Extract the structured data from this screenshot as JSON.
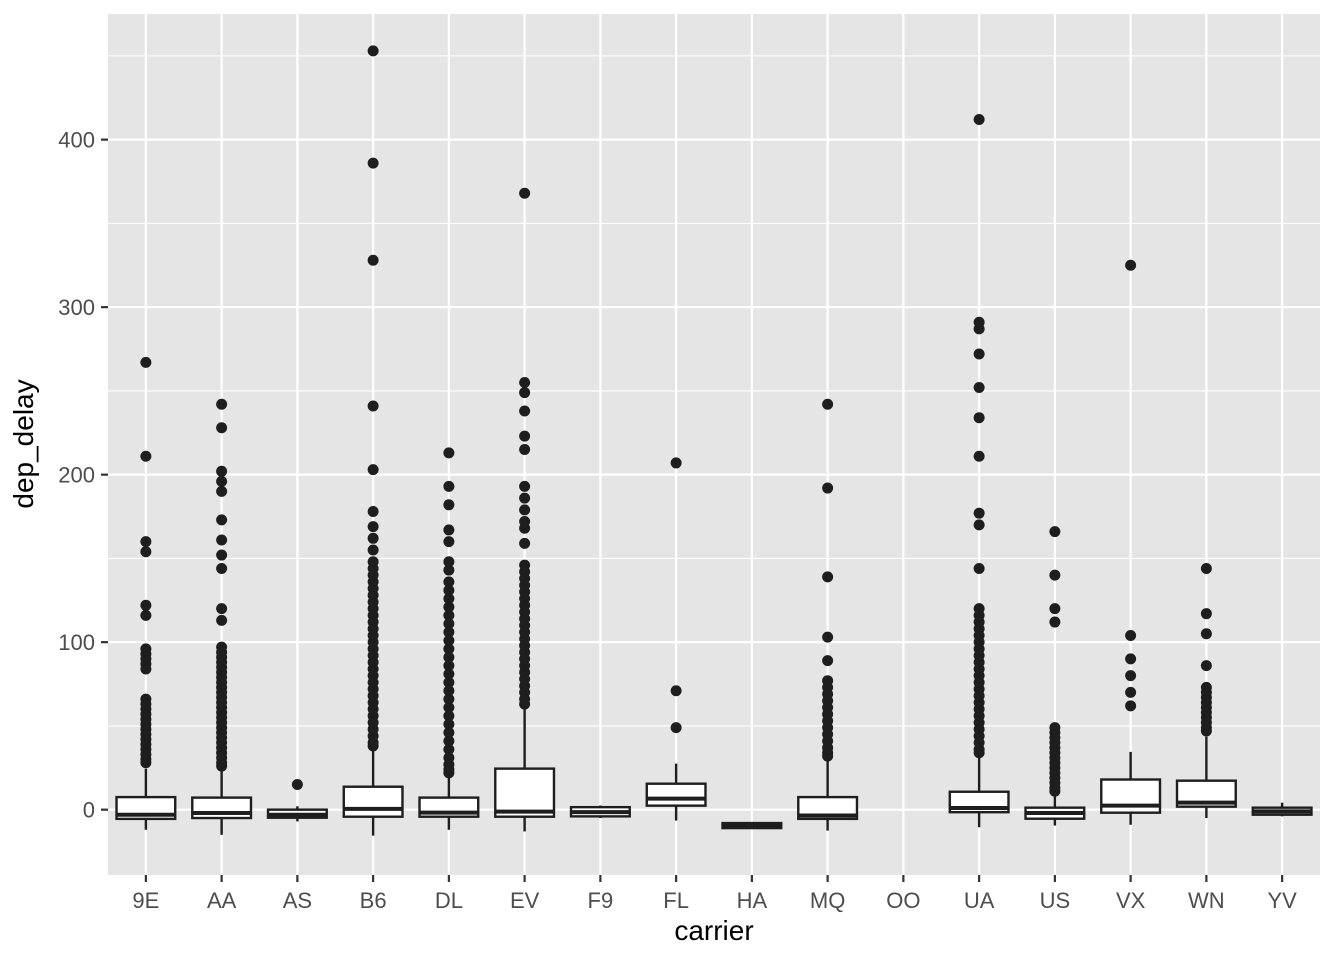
{
  "chart_data": {
    "type": "boxplot",
    "title": "",
    "xlabel": "carrier",
    "ylabel": "dep_delay",
    "categories": [
      "9E",
      "AA",
      "AS",
      "B6",
      "DL",
      "EV",
      "F9",
      "FL",
      "HA",
      "MQ",
      "OO",
      "UA",
      "US",
      "VX",
      "WN",
      "YV"
    ],
    "y_axis": {
      "major_ticks": [
        0,
        100,
        200,
        300,
        400
      ],
      "minor_gridlines": [
        50,
        150,
        250,
        350,
        450
      ],
      "ylim": [
        -39,
        475
      ]
    },
    "legend": "none",
    "grid": "on",
    "series": [
      {
        "carrier": "9E",
        "box": {
          "lo": -12,
          "q1": -5.5,
          "med": -3,
          "q3": 7.5,
          "hi": 24.5
        },
        "outliers": [
          267,
          211,
          160,
          154,
          122,
          116,
          96,
          93,
          90,
          87,
          84,
          66,
          63,
          60,
          57,
          54,
          51,
          48,
          45,
          42,
          39,
          36,
          33,
          30,
          28
        ]
      },
      {
        "carrier": "AA",
        "box": {
          "lo": -15,
          "q1": -5,
          "med": -2,
          "q3": 7.2,
          "hi": 24
        },
        "outliers": [
          242,
          228,
          202,
          196,
          190,
          173,
          161,
          152,
          144,
          120,
          113,
          97,
          94,
          91,
          88,
          85,
          82,
          79,
          76,
          73,
          70,
          67,
          64,
          61,
          58,
          55,
          52,
          49,
          46,
          43,
          40,
          37,
          34,
          31,
          28,
          26
        ]
      },
      {
        "carrier": "AS",
        "box": {
          "lo": -7,
          "q1": -4.8,
          "med": -3,
          "q3": 0,
          "hi": 2
        },
        "outliers": [
          15
        ]
      },
      {
        "carrier": "B6",
        "box": {
          "lo": -15.5,
          "q1": -4.2,
          "med": 0.5,
          "q3": 13.7,
          "hi": 35
        },
        "outliers": [
          453,
          386,
          328,
          241,
          203,
          178,
          169,
          162,
          155,
          148,
          144,
          140,
          136,
          132,
          128,
          124,
          120,
          116,
          112,
          108,
          104,
          100,
          96,
          92,
          88,
          84,
          80,
          76,
          72,
          68,
          64,
          60,
          56,
          52,
          48,
          44,
          40,
          38
        ]
      },
      {
        "carrier": "DL",
        "box": {
          "lo": -12,
          "q1": -4.2,
          "med": -1.8,
          "q3": 7.2,
          "hi": 19.7
        },
        "outliers": [
          213,
          193,
          182,
          167,
          160,
          148,
          143,
          136,
          131,
          126,
          121,
          116,
          111,
          106,
          101,
          96,
          91,
          86,
          81,
          76,
          71,
          66,
          61,
          56,
          51,
          46,
          41,
          36,
          31,
          27,
          24,
          22
        ]
      },
      {
        "carrier": "EV",
        "box": {
          "lo": -13,
          "q1": -4.2,
          "med": -1.2,
          "q3": 24.5,
          "hi": 61
        },
        "outliers": [
          368,
          255,
          249,
          238,
          223,
          215,
          193,
          186,
          179,
          172,
          168,
          159,
          146,
          142,
          138,
          134,
          130,
          126,
          122,
          118,
          114,
          110,
          106,
          102,
          98,
          94,
          90,
          86,
          82,
          78,
          74,
          70,
          66,
          63
        ]
      },
      {
        "carrier": "F9",
        "box": {
          "lo": -5,
          "q1": -4,
          "med": -1.5,
          "q3": 1.5,
          "hi": 2.5
        },
        "outliers": []
      },
      {
        "carrier": "FL",
        "box": {
          "lo": -6.5,
          "q1": 2.4,
          "med": 6.6,
          "q3": 15.5,
          "hi": 27.5
        },
        "outliers": [
          207,
          71,
          49
        ]
      },
      {
        "carrier": "HA",
        "box": {
          "lo": -11.5,
          "q1": -11,
          "med": -9.5,
          "q3": -8,
          "hi": -7.5
        },
        "outliers": []
      },
      {
        "carrier": "MQ",
        "box": {
          "lo": -12.5,
          "q1": -5.5,
          "med": -3.5,
          "q3": 7.5,
          "hi": 30
        },
        "outliers": [
          242,
          192,
          139,
          103,
          89,
          77,
          73,
          69,
          65,
          61,
          57,
          53,
          49,
          45,
          41,
          37,
          34,
          32
        ]
      },
      {
        "carrier": "OO",
        "box": null,
        "outliers": []
      },
      {
        "carrier": "UA",
        "box": {
          "lo": -10.5,
          "q1": -1.5,
          "med": 1,
          "q3": 10.7,
          "hi": 33
        },
        "outliers": [
          412,
          291,
          287,
          272,
          252,
          234,
          211,
          177,
          170,
          144,
          120,
          116,
          112,
          108,
          104,
          100,
          96,
          92,
          88,
          84,
          80,
          76,
          72,
          68,
          64,
          60,
          56,
          52,
          48,
          44,
          40,
          36,
          34
        ]
      },
      {
        "carrier": "US",
        "box": {
          "lo": -9.5,
          "q1": -5.4,
          "med": -2,
          "q3": 1.2,
          "hi": 9
        },
        "outliers": [
          166,
          140,
          120,
          112,
          49,
          46,
          43,
          40,
          37,
          34,
          31,
          28,
          25,
          22,
          19,
          16,
          13,
          11
        ]
      },
      {
        "carrier": "VX",
        "box": {
          "lo": -9,
          "q1": -1.8,
          "med": 2.4,
          "q3": 18,
          "hi": 34.5
        },
        "outliers": [
          325,
          104,
          90,
          80,
          70,
          62
        ]
      },
      {
        "carrier": "WN",
        "box": {
          "lo": -5,
          "q1": 1.8,
          "med": 4.2,
          "q3": 17.3,
          "hi": 43.6
        },
        "outliers": [
          144,
          117,
          105,
          86,
          73,
          70,
          67,
          64,
          61,
          58,
          55,
          52,
          49,
          47
        ]
      },
      {
        "carrier": "YV",
        "box": {
          "lo": -4,
          "q1": -3,
          "med": -1,
          "q3": 1.2,
          "hi": 4.2
        },
        "outliers": []
      }
    ],
    "style": {
      "panel_bg": "#E5E5E5",
      "grid_color": "#FFFFFF",
      "ink_color": "#1E1E1E",
      "box_fill": "#FFFFFF",
      "axis_text_color": "#4D4D4D",
      "tick_mark_color": "#333333",
      "title_color": "#000000"
    }
  }
}
